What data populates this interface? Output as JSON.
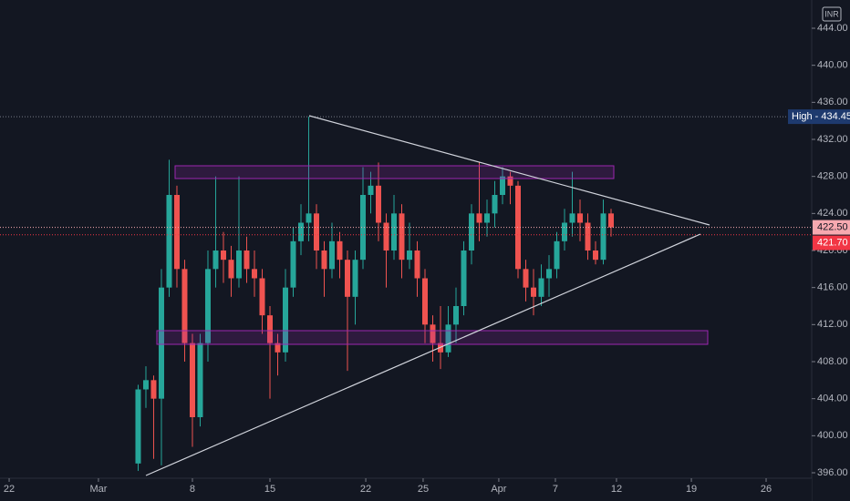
{
  "chart_data": {
    "type": "candlestick",
    "currency": "INR",
    "x": [
      -3.5,
      -3,
      -2.5,
      -2,
      -1.5,
      -1,
      -0.5,
      0,
      0.5,
      1,
      1.5,
      2,
      2.5,
      3,
      3.5,
      4,
      4.5,
      5,
      5.5,
      6,
      6.5,
      7,
      7.5,
      8,
      8.5,
      9,
      9.5,
      10,
      10.5,
      11,
      11.5,
      12,
      12.5,
      13,
      13.5,
      14,
      14.5,
      15,
      15.5,
      16,
      16.5,
      17,
      17.5,
      18,
      18.5,
      19,
      19.5,
      20,
      20.5,
      21,
      21.5,
      22,
      22.5,
      23,
      23.5,
      24,
      24.5,
      25,
      25.5,
      26,
      26.5,
      27
    ],
    "open": [
      397,
      405,
      406,
      404,
      416,
      426,
      418,
      410,
      402,
      410,
      418,
      420,
      419,
      417,
      420,
      418,
      417,
      413,
      410,
      409,
      416,
      421,
      423,
      424,
      420,
      418,
      421,
      419,
      415,
      419,
      426,
      427,
      423,
      420,
      424,
      419,
      420,
      417,
      412,
      410,
      409,
      412,
      414,
      420,
      424,
      423,
      424,
      426,
      428,
      427,
      418,
      416,
      415,
      417,
      418,
      421,
      423,
      424,
      423,
      420,
      419,
      424
    ],
    "high": [
      405.5,
      407.5,
      406.5,
      418,
      429.8,
      427,
      419,
      411,
      411,
      420,
      428,
      422,
      420.5,
      428,
      421.5,
      420,
      418,
      414,
      411,
      418,
      422.5,
      425,
      434.45,
      425,
      421,
      423,
      422,
      420,
      420,
      429,
      428.5,
      429.5,
      424,
      426,
      425,
      423,
      421,
      418,
      413,
      414,
      414,
      416,
      421,
      425,
      429.5,
      425.5,
      427.5,
      429,
      428.5,
      427.5,
      419,
      418,
      418.5,
      419.5,
      422,
      424.5,
      428.5,
      425.5,
      424,
      421,
      425.5,
      424.5
    ],
    "low": [
      396.2,
      403,
      397.5,
      396.8,
      415,
      416,
      408,
      398.8,
      401,
      408,
      416,
      416.5,
      415,
      416,
      416.5,
      415,
      411,
      404,
      406.5,
      408,
      415,
      419.5,
      421,
      418,
      415,
      417,
      417,
      407,
      412,
      418,
      424,
      421,
      416,
      419,
      417,
      418,
      415,
      410,
      408,
      407.2,
      408.5,
      410,
      413,
      418.5,
      421,
      421.5,
      422.5,
      425,
      425,
      417,
      414.5,
      413,
      414,
      415,
      417,
      420,
      421.5,
      421,
      419,
      418.5,
      418.5,
      421.5
    ],
    "close": [
      405,
      406,
      404,
      416,
      426,
      418,
      410,
      402,
      410,
      418,
      420,
      419,
      417,
      420,
      418,
      417,
      413,
      410,
      409,
      416,
      421,
      423,
      424,
      420,
      418,
      421,
      419,
      415,
      419,
      426,
      427,
      423,
      420,
      424,
      419,
      420,
      417,
      412,
      410,
      409,
      412,
      414,
      420,
      424,
      423,
      424,
      426,
      428,
      427,
      418,
      416,
      415,
      417,
      418,
      421,
      423,
      424,
      423,
      420,
      419,
      424,
      422.5
    ],
    "up_color": "#26a69a",
    "down_color": "#ef5350",
    "xlim": [
      -12.41,
      39.94
    ],
    "xticks": [
      {
        "value": -11.82,
        "label": "22"
      },
      {
        "value": -6.06,
        "label": "Mar"
      },
      {
        "value": 0,
        "label": "8"
      },
      {
        "value": 5,
        "label": "15"
      },
      {
        "value": 11.18,
        "label": "22"
      },
      {
        "value": 14.88,
        "label": "25"
      },
      {
        "value": 19.76,
        "label": "Apr"
      },
      {
        "value": 23.41,
        "label": "7"
      },
      {
        "value": 27.35,
        "label": "12"
      },
      {
        "value": 32.18,
        "label": "19"
      },
      {
        "value": 37,
        "label": "26"
      }
    ],
    "ylim": [
      392.95,
      447.05
    ],
    "yticks": [
      {
        "value": 396,
        "label": "396.00"
      },
      {
        "value": 400,
        "label": "400.00"
      },
      {
        "value": 404,
        "label": "404.00"
      },
      {
        "value": 408,
        "label": "408.00"
      },
      {
        "value": 412,
        "label": "412.00"
      },
      {
        "value": 416,
        "label": "416.00"
      },
      {
        "value": 420,
        "label": "420.00"
      },
      {
        "value": 424,
        "label": "424.00"
      },
      {
        "value": 428,
        "label": "428.00"
      },
      {
        "value": 432,
        "label": "432.00"
      },
      {
        "value": 436,
        "label": "436.00"
      },
      {
        "value": 440,
        "label": "440.00"
      },
      {
        "value": 444,
        "label": "444.00"
      }
    ],
    "high_marker": {
      "value": 434.45,
      "label": "High - 434.45"
    },
    "price_labels": [
      {
        "value": 422.5,
        "label": "422.50",
        "color": "#f7a9b0",
        "text_color": "#131722"
      },
      {
        "value": 421.7,
        "label": "421.70",
        "color": "#f23645",
        "text_color": "#ffffff"
      }
    ],
    "grid": false
  }
}
